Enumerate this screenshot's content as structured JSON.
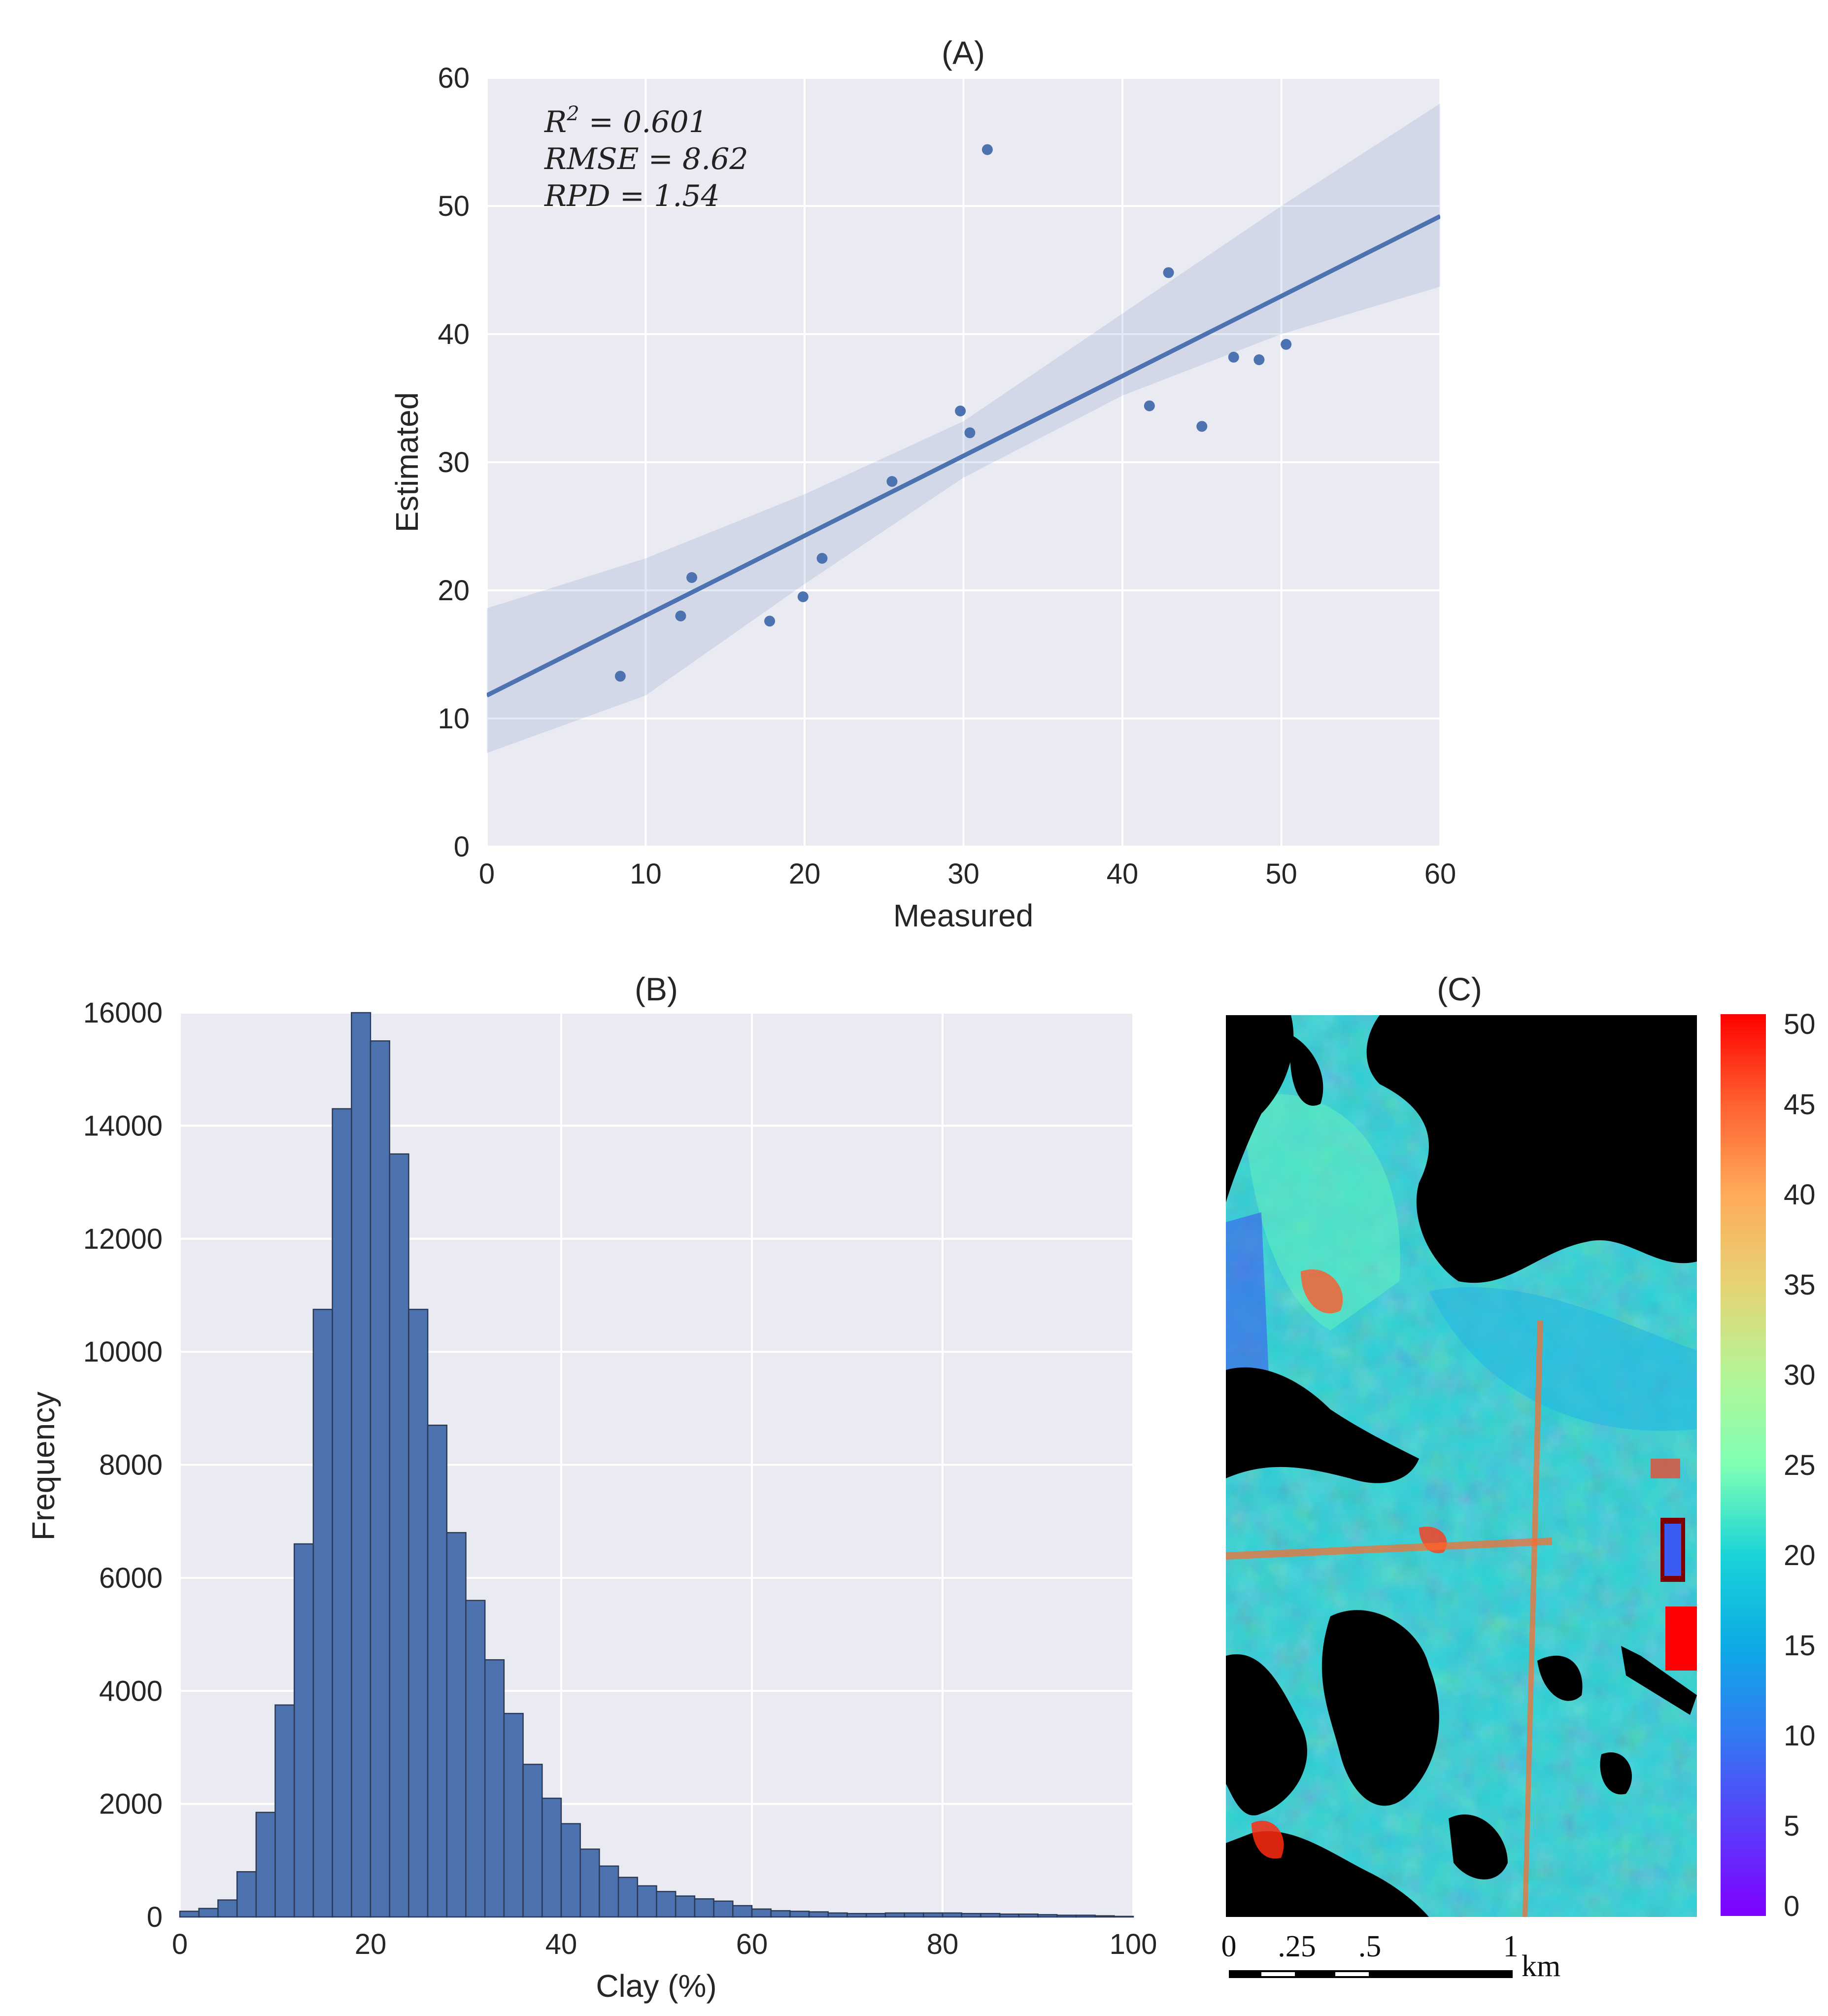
{
  "chart_data": [
    {
      "type": "scatter",
      "title": "(A)",
      "xlabel": "Measured",
      "ylabel": "Estimated",
      "xlim": [
        0,
        60
      ],
      "ylim": [
        0,
        60
      ],
      "xticks": [
        0,
        10,
        20,
        30,
        40,
        50,
        60
      ],
      "yticks": [
        0,
        10,
        20,
        30,
        40,
        50,
        60
      ],
      "grid": true,
      "points": [
        {
          "x": 8.4,
          "y": 13.3
        },
        {
          "x": 12.2,
          "y": 18.0
        },
        {
          "x": 12.9,
          "y": 21.0
        },
        {
          "x": 17.8,
          "y": 17.6
        },
        {
          "x": 19.9,
          "y": 19.5
        },
        {
          "x": 21.1,
          "y": 22.5
        },
        {
          "x": 25.5,
          "y": 28.5
        },
        {
          "x": 29.8,
          "y": 34.0
        },
        {
          "x": 30.4,
          "y": 32.3
        },
        {
          "x": 31.5,
          "y": 54.4
        },
        {
          "x": 41.7,
          "y": 34.4
        },
        {
          "x": 42.9,
          "y": 44.8
        },
        {
          "x": 45.0,
          "y": 32.8
        },
        {
          "x": 47.0,
          "y": 38.2
        },
        {
          "x": 48.6,
          "y": 38.0
        },
        {
          "x": 50.3,
          "y": 39.2
        }
      ],
      "regression": {
        "x": [
          0,
          60
        ],
        "y": [
          11.8,
          49.2
        ]
      },
      "confidence_band": {
        "x": [
          0,
          10,
          20,
          30,
          40,
          50,
          60
        ],
        "lower": [
          7.3,
          11.8,
          20.5,
          28.8,
          35.2,
          40.0,
          43.7
        ],
        "upper": [
          18.6,
          22.5,
          27.5,
          33.2,
          41.6,
          50.0,
          58.0
        ]
      },
      "annotations": [
        "R^2 = 0.601",
        "RMSE = 8.62",
        "RPD = 1.54"
      ],
      "stats": {
        "r2_sym": "R",
        "r2_sup": "2",
        "r2_val": " = 0.601",
        "rmse": "RMSE = 8.62",
        "rpd": "RPD = 1.54"
      }
    },
    {
      "type": "bar",
      "title": "(B)",
      "xlabel": "Clay (%)",
      "ylabel": "Frequency",
      "xlim": [
        0,
        100
      ],
      "ylim": [
        0,
        16000
      ],
      "xticks": [
        0,
        20,
        40,
        60,
        80,
        100
      ],
      "yticks": [
        0,
        2000,
        4000,
        6000,
        8000,
        10000,
        12000,
        14000,
        16000
      ],
      "grid": true,
      "bin_width": 2,
      "bin_edges_start": 0,
      "values": [
        100,
        150,
        300,
        800,
        1850,
        3750,
        6600,
        10750,
        14300,
        16000,
        15500,
        13500,
        10750,
        8700,
        6800,
        5600,
        4550,
        3600,
        2700,
        2100,
        1650,
        1200,
        900,
        700,
        550,
        450,
        370,
        320,
        280,
        200,
        140,
        110,
        100,
        90,
        70,
        60,
        60,
        70,
        70,
        70,
        70,
        60,
        60,
        50,
        50,
        40,
        30,
        30,
        20,
        10
      ]
    },
    {
      "type": "heatmap",
      "title": "(C)",
      "colorbar": {
        "min": 0,
        "max": 50,
        "ticks": [
          0,
          5,
          10,
          15,
          20,
          25,
          30,
          35,
          40,
          45,
          50
        ],
        "colormap": "rainbow"
      },
      "scale_bar": {
        "labels": [
          "0",
          ".25",
          ".5",
          "1"
        ],
        "unit": "km"
      }
    }
  ]
}
